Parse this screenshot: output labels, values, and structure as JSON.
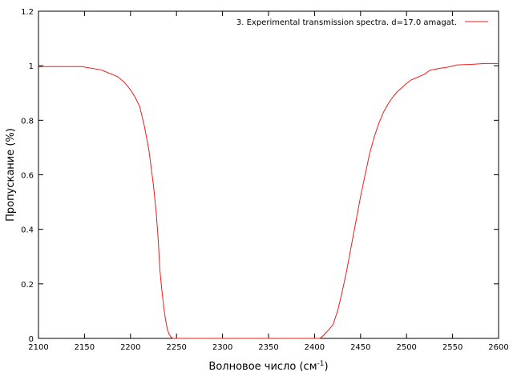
{
  "chart_data": {
    "type": "line",
    "title": "",
    "xlabel": "Волновое число (см",
    "xlabel_sup": "-1",
    "xlabel_tail": ")",
    "ylabel": "Пропускание (%)",
    "xlim": [
      2100,
      2600
    ],
    "ylim": [
      0,
      1.2
    ],
    "xticks": [
      "2100",
      "2150",
      "2200",
      "2250",
      "2300",
      "2350",
      "2400",
      "2450",
      "2500",
      "2550",
      "2600"
    ],
    "yticks": [
      "0",
      "0.2",
      "0.4",
      "0.6",
      "0.8",
      "1",
      "1.2"
    ],
    "grid": false,
    "legend_position": "top-right",
    "colors": {
      "series": "#ee1c1c",
      "axis": "#000000"
    },
    "series": [
      {
        "name": "3. Experimental transmission spectra. d=17.0 amagat.",
        "x": [
          2100,
          2104,
          2147,
          2168,
          2186,
          2193,
          2200,
          2205,
          2210,
          2215,
          2220,
          2225,
          2228,
          2230,
          2232,
          2234,
          2236,
          2238,
          2240,
          2242,
          2244,
          2246,
          2400,
          2406,
          2410,
          2415,
          2420,
          2425,
          2430,
          2435,
          2440,
          2445,
          2450,
          2455,
          2460,
          2465,
          2470,
          2475,
          2480,
          2485,
          2490,
          2495,
          2500,
          2505,
          2510,
          2515,
          2520,
          2525,
          2535,
          2545,
          2555,
          2570,
          2585,
          2600
        ],
        "y": [
          0.995,
          0.997,
          0.997,
          0.985,
          0.96,
          0.94,
          0.912,
          0.885,
          0.85,
          0.78,
          0.69,
          0.56,
          0.46,
          0.37,
          0.25,
          0.18,
          0.12,
          0.07,
          0.035,
          0.015,
          0.005,
          0.0,
          0.0,
          0.0,
          0.012,
          0.03,
          0.05,
          0.1,
          0.17,
          0.25,
          0.34,
          0.43,
          0.52,
          0.6,
          0.68,
          0.74,
          0.79,
          0.83,
          0.86,
          0.885,
          0.905,
          0.92,
          0.935,
          0.948,
          0.955,
          0.962,
          0.97,
          0.983,
          0.99,
          0.995,
          1.003,
          1.005,
          1.008,
          1.008
        ]
      }
    ]
  }
}
